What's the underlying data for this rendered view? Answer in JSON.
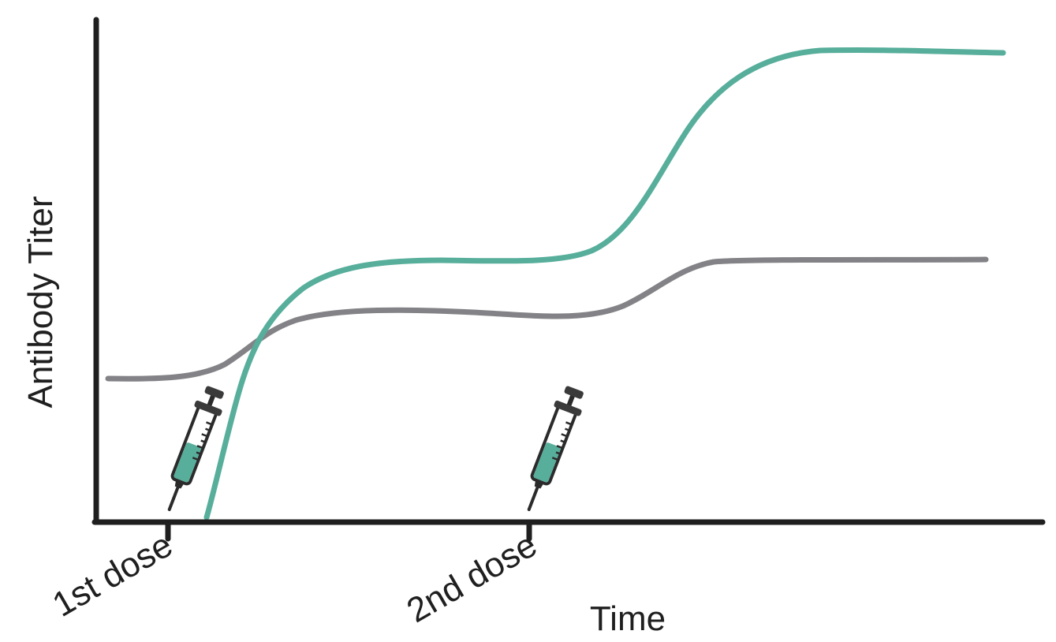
{
  "labels": {
    "y_axis": "Antibody Titer",
    "x_axis": "Time",
    "dose_1": "1st dose",
    "dose_2": "2nd dose"
  },
  "colors": {
    "teal_curve": "#57ae9b",
    "gray_curve": "#838387",
    "axis": "#1f1f1f",
    "syringe_fill": "#57ae9b",
    "syringe_dark": "#3a3a3a"
  },
  "icons": {
    "dose_marker": "syringe-icon"
  }
}
